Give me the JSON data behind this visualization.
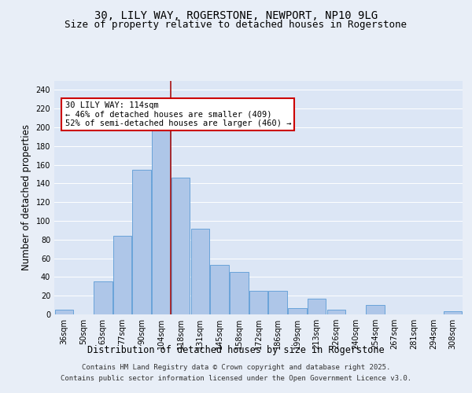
{
  "title_line1": "30, LILY WAY, ROGERSTONE, NEWPORT, NP10 9LG",
  "title_line2": "Size of property relative to detached houses in Rogerstone",
  "xlabel": "Distribution of detached houses by size in Rogerstone",
  "ylabel": "Number of detached properties",
  "categories": [
    "36sqm",
    "50sqm",
    "63sqm",
    "77sqm",
    "90sqm",
    "104sqm",
    "118sqm",
    "131sqm",
    "145sqm",
    "158sqm",
    "172sqm",
    "186sqm",
    "199sqm",
    "213sqm",
    "226sqm",
    "240sqm",
    "254sqm",
    "267sqm",
    "281sqm",
    "294sqm",
    "308sqm"
  ],
  "values": [
    5,
    0,
    35,
    84,
    155,
    200,
    146,
    92,
    53,
    45,
    25,
    25,
    7,
    17,
    5,
    0,
    10,
    0,
    0,
    0,
    3
  ],
  "bar_color": "#aec6e8",
  "bar_edge_color": "#5b9bd5",
  "vline_color": "#aa1111",
  "annotation_text": "30 LILY WAY: 114sqm\n← 46% of detached houses are smaller (409)\n52% of semi-detached houses are larger (460) →",
  "annotation_box_color": "#ffffff",
  "annotation_box_edge": "#cc0000",
  "vline_index": 5,
  "ylim": [
    0,
    250
  ],
  "yticks": [
    0,
    20,
    40,
    60,
    80,
    100,
    120,
    140,
    160,
    180,
    200,
    220,
    240
  ],
  "background_color": "#e8eef7",
  "plot_bg_color": "#dce6f5",
  "grid_color": "#ffffff",
  "footer_line1": "Contains HM Land Registry data © Crown copyright and database right 2025.",
  "footer_line2": "Contains public sector information licensed under the Open Government Licence v3.0.",
  "title_fontsize": 10,
  "subtitle_fontsize": 9,
  "tick_fontsize": 7,
  "xlabel_fontsize": 8.5,
  "ylabel_fontsize": 8.5,
  "footer_fontsize": 6.5
}
